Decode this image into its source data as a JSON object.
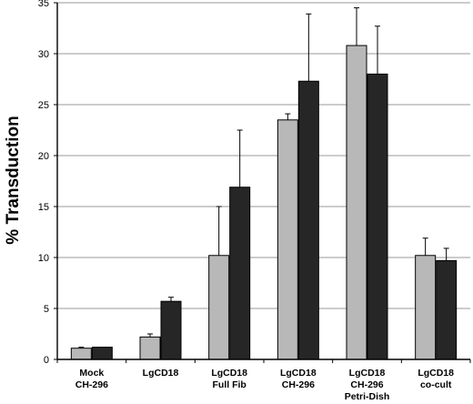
{
  "chart_data": {
    "type": "bar",
    "title": "",
    "xlabel": "",
    "ylabel": "% Transduction",
    "ylim": [
      0,
      35
    ],
    "yticks": [
      0,
      5,
      10,
      15,
      20,
      25,
      30,
      35
    ],
    "grid": true,
    "legend": "none",
    "categories": [
      [
        "Mock",
        "CH-296"
      ],
      [
        "LgCD18"
      ],
      [
        "LgCD18",
        "Full Fib"
      ],
      [
        "LgCD18",
        "CH-296"
      ],
      [
        "LgCD18",
        "CH-296",
        "Petri-Dish"
      ],
      [
        "LgCD18",
        "co-cult"
      ]
    ],
    "series": [
      {
        "color": "#b8b8b8",
        "values": [
          1.1,
          2.2,
          10.2,
          23.5,
          30.8,
          10.2
        ],
        "errors": [
          0.1,
          0.3,
          4.8,
          0.6,
          3.7,
          1.7
        ]
      },
      {
        "color": "#262626",
        "values": [
          1.2,
          5.7,
          16.9,
          27.3,
          28.0,
          9.7
        ],
        "errors": [
          0.0,
          0.4,
          5.6,
          6.6,
          4.7,
          1.2
        ]
      }
    ]
  }
}
